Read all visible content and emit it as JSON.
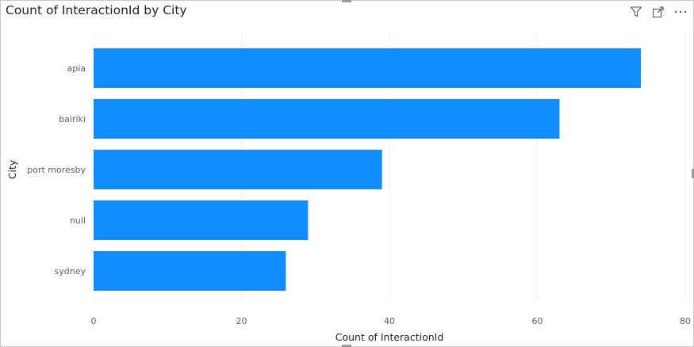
{
  "visual": {
    "title": "Count of InteractionId by City",
    "icons": [
      "filter-icon",
      "focus-mode-icon",
      "more-options-icon"
    ]
  },
  "colors": {
    "bar": "#118DFF",
    "gridline": "#d2d2d2",
    "tick": "#605e5c",
    "title": "#252423"
  },
  "chart_data": {
    "type": "bar",
    "orientation": "horizontal",
    "title": "Count of InteractionId by City",
    "xlabel": "Count of InteractionId",
    "ylabel": "City",
    "categories": [
      "apia",
      "bairiki",
      "port moresby",
      "null",
      "sydney"
    ],
    "values": [
      74,
      63,
      39,
      29,
      26
    ],
    "xlim": [
      0,
      80
    ],
    "xticks": [
      0,
      20,
      40,
      60,
      80
    ],
    "grid": "vertical-dotted",
    "legend": "none"
  }
}
